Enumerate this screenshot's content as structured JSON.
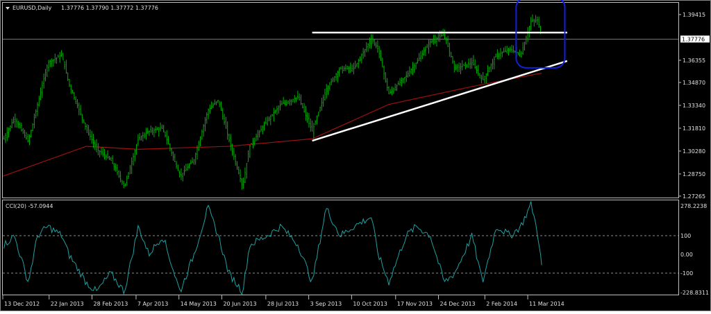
{
  "header": {
    "symbol": "EURUSD,Daily",
    "ohlc": "1.37776 1.37790 1.37772 1.37776",
    "menu_icon": "triangle-down-icon"
  },
  "colors": {
    "background": "#000000",
    "bars": "#00b000",
    "ma": "#a01010",
    "cci": "#20a0a0",
    "trendline": "#ffffff",
    "highlight": "#1020e0",
    "frame": "#c0c0c0"
  },
  "price_axis": {
    "labels": [
      "1.39415",
      "1.36355",
      "1.34870",
      "1.33340",
      "1.31810",
      "1.30280",
      "1.28750",
      "1.27265"
    ],
    "values": [
      1.39415,
      1.36355,
      1.3487,
      1.3334,
      1.3181,
      1.3028,
      1.2875,
      1.27265
    ],
    "current_price": "1.37776",
    "range": [
      1.27265,
      1.39415
    ]
  },
  "cci_panel": {
    "title": "CCI(20) -57.0944",
    "labels": [
      "278.2238",
      "100",
      "0.00",
      "-100",
      "-228.8311"
    ],
    "values": [
      278.2238,
      100,
      0,
      -100,
      -228.8311
    ],
    "levels": [
      100,
      -100
    ]
  },
  "time_axis": {
    "labels": [
      "13 Dec 2012",
      "22 Jan 2013",
      "28 Feb 2013",
      "7 Apr 2013",
      "14 May 2013",
      "20 Jun 2013",
      "28 Jul 2013",
      "3 Sep 2013",
      "10 Oct 2013",
      "17 Nov 2013",
      "24 Dec 2013",
      "2 Feb 2014",
      "11 Mar 2014"
    ],
    "dates": [
      "2012-12-13",
      "2013-01-22",
      "2013-02-28",
      "2013-04-07",
      "2013-05-14",
      "2013-06-20",
      "2013-07-28",
      "2013-09-03",
      "2013-10-10",
      "2013-11-17",
      "2013-12-24",
      "2014-02-02",
      "2014-03-11"
    ]
  },
  "chart_data": {
    "type": "ohlc",
    "title": "EURUSD,Daily",
    "x": [
      "2012-12-14",
      "2012-12-23",
      "2013-01-04",
      "2013-01-12",
      "2013-01-21",
      "2013-02-02",
      "2013-02-08",
      "2013-02-23",
      "2013-03-04",
      "2013-03-16",
      "2013-03-28",
      "2013-04-09",
      "2013-04-18",
      "2013-04-30",
      "2013-05-15",
      "2013-05-27",
      "2013-06-08",
      "2013-06-17",
      "2013-06-26",
      "2013-07-08",
      "2013-07-14",
      "2013-07-29",
      "2013-08-10",
      "2013-08-25",
      "2013-09-06",
      "2013-09-18",
      "2013-09-30",
      "2013-10-12",
      "2013-10-27",
      "2013-11-02",
      "2013-11-11",
      "2013-11-26",
      "2013-12-05",
      "2013-12-17",
      "2013-12-29",
      "2014-01-07",
      "2014-01-22",
      "2014-01-31",
      "2014-02-12",
      "2014-02-24",
      "2014-03-05",
      "2014-03-14",
      "2014-03-20",
      "2014-03-23"
    ],
    "close": [
      1.311,
      1.325,
      1.309,
      1.334,
      1.362,
      1.367,
      1.348,
      1.318,
      1.304,
      1.297,
      1.279,
      1.311,
      1.316,
      1.318,
      1.286,
      1.297,
      1.33,
      1.337,
      1.311,
      1.279,
      1.306,
      1.323,
      1.334,
      1.339,
      1.316,
      1.344,
      1.358,
      1.358,
      1.378,
      1.371,
      1.341,
      1.353,
      1.362,
      1.376,
      1.381,
      1.358,
      1.362,
      1.35,
      1.367,
      1.371,
      1.367,
      1.39,
      1.39,
      1.378
    ],
    "cci": [
      50,
      100,
      -150,
      100,
      150,
      100,
      0,
      -150,
      -200,
      -100,
      -200,
      150,
      0,
      100,
      -200,
      0,
      250,
      100,
      -100,
      -200,
      50,
      100,
      150,
      50,
      -150,
      250,
      100,
      150,
      200,
      0,
      -150,
      100,
      150,
      100,
      -150,
      -100,
      100,
      -150,
      150,
      100,
      150,
      270,
      100,
      -57
    ],
    "moving_average": {
      "x": [
        "2012-12-13",
        "2013-02-23",
        "2013-04-09",
        "2013-06-26",
        "2013-09-06",
        "2013-11-11",
        "2014-01-22",
        "2014-03-23"
      ],
      "y": [
        1.286,
        1.306,
        1.304,
        1.306,
        1.311,
        1.334,
        1.346,
        1.355
      ]
    },
    "trendlines": [
      {
        "kind": "resistance",
        "x": [
          "2013-09-06",
          "2014-04-14"
        ],
        "y": [
          1.3821,
          1.3821
        ]
      },
      {
        "kind": "support",
        "x": [
          "2013-09-06",
          "2014-04-14"
        ],
        "y": [
          1.3097,
          1.3631
        ]
      }
    ],
    "highlight": {
      "x": [
        "2014-03-01",
        "2014-04-12"
      ],
      "y": [
        1.3585,
        1.4055
      ]
    }
  }
}
